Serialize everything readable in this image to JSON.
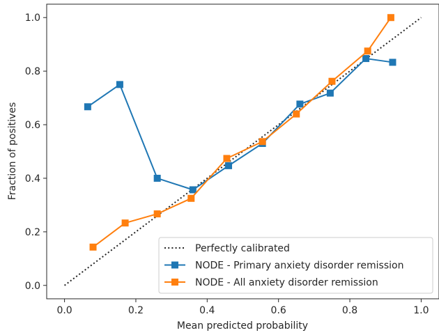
{
  "chart_data": {
    "type": "line",
    "xlabel": "Mean predicted probability",
    "ylabel": "Fraction of positives",
    "xlim": [
      -0.05,
      1.05
    ],
    "ylim": [
      -0.05,
      1.05
    ],
    "xticks": [
      "0.0",
      "0.2",
      "0.4",
      "0.6",
      "0.8",
      "1.0"
    ],
    "yticks": [
      "0.0",
      "0.2",
      "0.4",
      "0.6",
      "0.8",
      "1.0"
    ],
    "grid": false,
    "legend_position": "lower-right",
    "reference_line": {
      "name": "Perfectly calibrated",
      "x": [
        0,
        1
      ],
      "y": [
        0,
        1
      ],
      "color": "#262626",
      "style": "dotted"
    },
    "series": [
      {
        "name": "NODE - Primary anxiety disorder remission",
        "color": "#1f77b4",
        "marker": "square",
        "x": [
          0.065,
          0.155,
          0.26,
          0.36,
          0.46,
          0.555,
          0.66,
          0.745,
          0.845,
          0.92
        ],
        "y": [
          0.667,
          0.75,
          0.4,
          0.357,
          0.447,
          0.53,
          0.677,
          0.718,
          0.847,
          0.833
        ]
      },
      {
        "name": "NODE - All anxiety disorder remission",
        "color": "#ff7f0e",
        "marker": "square",
        "x": [
          0.08,
          0.17,
          0.26,
          0.355,
          0.455,
          0.555,
          0.65,
          0.75,
          0.85,
          0.915
        ],
        "y": [
          0.143,
          0.233,
          0.267,
          0.325,
          0.474,
          0.537,
          0.64,
          0.762,
          0.875,
          1.0
        ]
      }
    ]
  }
}
